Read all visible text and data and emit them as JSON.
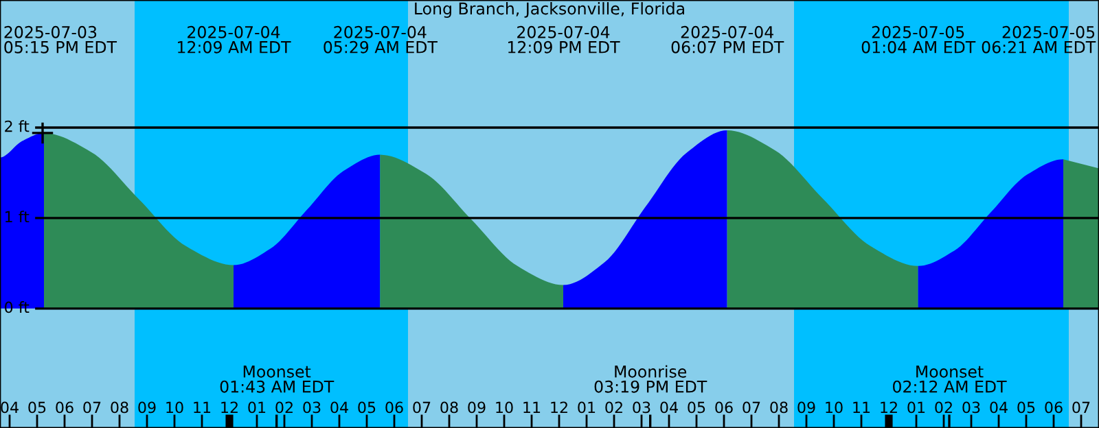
{
  "chart_data": {
    "type": "area",
    "title": "Long Branch, Jacksonville, Florida",
    "series": [
      {
        "color": "#0000ff",
        "x": [
          "2025-07-03T15:39",
          "2025-07-03T16:27",
          "2025-07-03T17:15"
        ],
        "values": [
          1.67,
          1.85,
          1.94
        ]
      },
      {
        "color": "#2e8b57",
        "x": [
          "2025-07-03T17:15",
          "2025-07-03T18:58",
          "2025-07-03T20:42",
          "2025-07-03T22:25",
          "2025-07-04T00:09"
        ],
        "values": [
          1.94,
          1.73,
          1.21,
          0.69,
          0.48
        ]
      },
      {
        "color": "#0000ff",
        "x": [
          "2025-07-04T00:09",
          "2025-07-04T01:29",
          "2025-07-04T02:49",
          "2025-07-04T04:09",
          "2025-07-04T05:29"
        ],
        "values": [
          0.48,
          0.66,
          1.09,
          1.52,
          1.7
        ]
      },
      {
        "color": "#2e8b57",
        "x": [
          "2025-07-04T05:29",
          "2025-07-04T07:09",
          "2025-07-04T08:49",
          "2025-07-04T10:29",
          "2025-07-04T12:09"
        ],
        "values": [
          1.7,
          1.49,
          0.98,
          0.47,
          0.26
        ]
      },
      {
        "color": "#0000ff",
        "x": [
          "2025-07-04T12:09",
          "2025-07-04T13:39",
          "2025-07-04T15:08",
          "2025-07-04T16:38",
          "2025-07-04T18:07"
        ],
        "values": [
          0.26,
          0.51,
          1.12,
          1.72,
          1.97
        ]
      },
      {
        "color": "#2e8b57",
        "x": [
          "2025-07-04T18:07",
          "2025-07-04T19:51",
          "2025-07-04T21:35",
          "2025-07-04T23:20",
          "2025-07-05T01:04"
        ],
        "values": [
          1.97,
          1.75,
          1.22,
          0.69,
          0.47
        ]
      },
      {
        "color": "#0000ff",
        "x": [
          "2025-07-05T01:04",
          "2025-07-05T02:23",
          "2025-07-05T03:42",
          "2025-07-05T05:02",
          "2025-07-05T06:21"
        ],
        "values": [
          0.47,
          0.64,
          1.06,
          1.48,
          1.65
        ]
      },
      {
        "color": "#2e8b57",
        "x": [
          "2025-07-05T06:21",
          "2025-07-05T07:39"
        ],
        "values": [
          1.65,
          1.55
        ]
      },
      {
        "type": "scatter",
        "color": "#000000",
        "marker": "cross",
        "x": [
          "2025-07-03T17:12"
        ],
        "values": [
          1.94
        ]
      }
    ],
    "xlim": [
      "2025-07-03T15:39",
      "2025-07-05T07:39"
    ],
    "xticks": [
      {
        "value": "2025-07-03T16:00",
        "label": "04"
      },
      {
        "value": "2025-07-03T17:00",
        "label": "05"
      },
      {
        "value": "2025-07-03T18:00",
        "label": "06"
      },
      {
        "value": "2025-07-03T19:00",
        "label": "07"
      },
      {
        "value": "2025-07-03T20:00",
        "label": "08"
      },
      {
        "value": "2025-07-03T21:00",
        "label": "09"
      },
      {
        "value": "2025-07-03T22:00",
        "label": "10"
      },
      {
        "value": "2025-07-03T23:00",
        "label": "11"
      },
      {
        "value": "2025-07-04T00:00",
        "label": "12"
      },
      {
        "value": "2025-07-04T01:00",
        "label": "01"
      },
      {
        "value": "2025-07-04T01:43",
        "label": null
      },
      {
        "value": "2025-07-04T02:00",
        "label": "02"
      },
      {
        "value": "2025-07-04T03:00",
        "label": "03"
      },
      {
        "value": "2025-07-04T04:00",
        "label": "04"
      },
      {
        "value": "2025-07-04T05:00",
        "label": "05"
      },
      {
        "value": "2025-07-04T06:00",
        "label": "06"
      },
      {
        "value": "2025-07-04T07:00",
        "label": "07"
      },
      {
        "value": "2025-07-04T08:00",
        "label": "08"
      },
      {
        "value": "2025-07-04T09:00",
        "label": "09"
      },
      {
        "value": "2025-07-04T10:00",
        "label": "10"
      },
      {
        "value": "2025-07-04T11:00",
        "label": "11"
      },
      {
        "value": "2025-07-04T12:00",
        "label": "12"
      },
      {
        "value": "2025-07-04T13:00",
        "label": "01"
      },
      {
        "value": "2025-07-04T14:00",
        "label": "02"
      },
      {
        "value": "2025-07-04T15:00",
        "label": "03"
      },
      {
        "value": "2025-07-04T15:19",
        "label": null
      },
      {
        "value": "2025-07-04T16:00",
        "label": "04"
      },
      {
        "value": "2025-07-04T17:00",
        "label": "05"
      },
      {
        "value": "2025-07-04T18:00",
        "label": "06"
      },
      {
        "value": "2025-07-04T19:00",
        "label": "07"
      },
      {
        "value": "2025-07-04T20:00",
        "label": "08"
      },
      {
        "value": "2025-07-04T21:00",
        "label": "09"
      },
      {
        "value": "2025-07-04T22:00",
        "label": "10"
      },
      {
        "value": "2025-07-04T23:00",
        "label": "11"
      },
      {
        "value": "2025-07-05T00:00",
        "label": "12"
      },
      {
        "value": "2025-07-05T01:00",
        "label": "01"
      },
      {
        "value": "2025-07-05T02:00",
        "label": "02"
      },
      {
        "value": "2025-07-05T02:12",
        "label": null
      },
      {
        "value": "2025-07-05T03:00",
        "label": "03"
      },
      {
        "value": "2025-07-05T04:00",
        "label": "04"
      },
      {
        "value": "2025-07-05T05:00",
        "label": "05"
      },
      {
        "value": "2025-07-05T06:00",
        "label": "06"
      },
      {
        "value": "2025-07-05T07:00",
        "label": "07"
      }
    ],
    "ylim": [
      -1.32,
      3.41
    ],
    "yticks": [
      {
        "value": 0,
        "label": "0 ft"
      },
      {
        "value": 1,
        "label": "1 ft"
      },
      {
        "value": 2,
        "label": "2 ft"
      }
    ],
    "grid": "y",
    "bands": [
      {
        "axis": "x",
        "from": "2025-07-03T15:39",
        "to": "2025-07-03T20:33",
        "color": "#87ceeb"
      },
      {
        "axis": "x",
        "from": "2025-07-03T20:33",
        "to": "2025-07-04T06:30",
        "color": "#00bfff"
      },
      {
        "axis": "x",
        "from": "2025-07-04T06:30",
        "to": "2025-07-04T20:33",
        "color": "#87ceeb"
      },
      {
        "axis": "x",
        "from": "2025-07-04T20:33",
        "to": "2025-07-05T06:33",
        "color": "#00bfff"
      },
      {
        "axis": "x",
        "from": "2025-07-05T06:33",
        "to": "2025-07-05T07:39",
        "color": "#87ceeb"
      }
    ],
    "annotations": [
      "2025-07-03\n05:15 PM EDT",
      "2025-07-04\n12:09 AM EDT",
      "2025-07-04\n05:29 AM EDT",
      "2025-07-04\n12:09 PM EDT",
      "2025-07-04\n06:07 PM EDT",
      "2025-07-05\n01:04 AM EDT",
      "2025-07-05\n06:21 AM EDT",
      "Moonset\n01:43 AM EDT",
      "Moonrise\n03:19 PM EDT",
      "Moonset\n02:12 AM EDT"
    ],
    "legend": false
  }
}
